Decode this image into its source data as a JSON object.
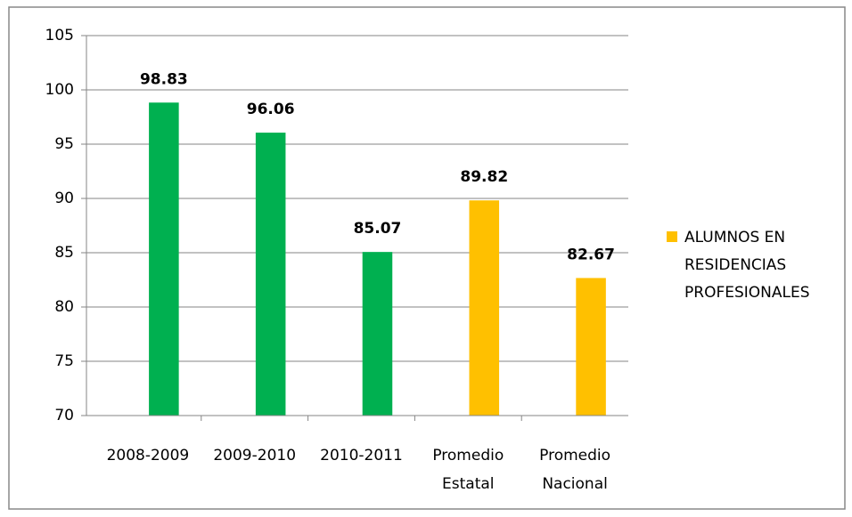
{
  "chart_data": {
    "type": "bar",
    "categories": [
      "2008-2009",
      "2009-2010",
      "2010-2011",
      "Promedio Estatal",
      "Promedio Nacional"
    ],
    "series": [
      {
        "name": "ALUMNOS EN RESIDENCIAS PROFESIONALES",
        "color": "#ffc000",
        "values": [
          98.83,
          96.06,
          85.07,
          89.82,
          82.67
        ]
      }
    ],
    "bar_colors": [
      "#00b050",
      "#00b050",
      "#00b050",
      "#ffc000",
      "#ffc000"
    ],
    "ylim": [
      70,
      105
    ],
    "yticks": [
      70,
      75,
      80,
      85,
      90,
      95,
      100,
      105
    ],
    "grid": true,
    "legend": "right"
  }
}
